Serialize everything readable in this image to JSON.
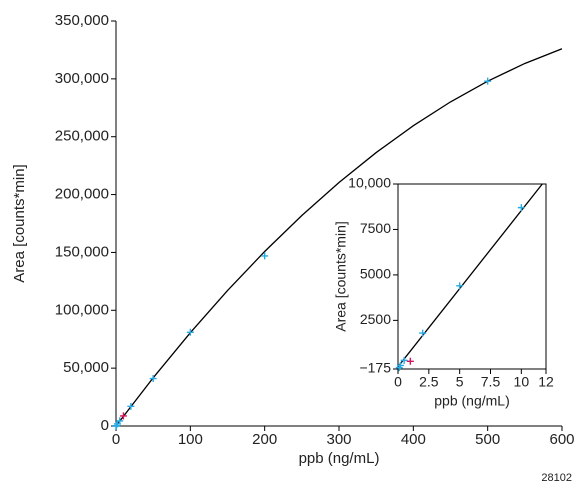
{
  "chart_data": [
    {
      "type": "scatter",
      "xlabel": "ppb (ng/mL)",
      "ylabel": "Area [counts*min]",
      "xlim": [
        0,
        600
      ],
      "ylim": [
        0,
        350000
      ],
      "frame": false,
      "xticks": [
        0,
        100,
        200,
        300,
        400,
        500,
        600
      ],
      "yticks": [
        0,
        {
          "value": 50000,
          "label": "50,000"
        },
        {
          "value": 100000,
          "label": "100,000"
        },
        {
          "value": 150000,
          "label": "150,000"
        },
        {
          "value": 200000,
          "label": "200,000"
        },
        {
          "value": 250000,
          "label": "250,000"
        },
        {
          "value": 300000,
          "label": "300,000"
        },
        {
          "value": 350000,
          "label": "350,000"
        }
      ],
      "series": [
        {
          "type": "line",
          "color": "#000000",
          "x": [
            0,
            50,
            100,
            150,
            200,
            250,
            300,
            350,
            400,
            450,
            500,
            550,
            600
          ],
          "values": [
            0,
            41650,
            80670,
            117040,
            150800,
            181900,
            210400,
            236300,
            259500,
            280100,
            298000,
            313300,
            326000
          ]
        },
        {
          "type": "scatter",
          "color": "#29abe2",
          "x": [
            0.1,
            0.2,
            0.5,
            2,
            5,
            20,
            50,
            100,
            200,
            500
          ],
          "values": [
            -100,
            20,
            300,
            1800,
            4400,
            17000,
            41000,
            81000,
            147000,
            298000
          ]
        },
        {
          "type": "scatter",
          "color": "#d4145a",
          "x": [
            10
          ],
          "values": [
            8700
          ]
        }
      ]
    },
    {
      "type": "scatter",
      "xlabel": "ppb (ng/mL)",
      "ylabel": "Area [counts*min]",
      "xlim": [
        0,
        12
      ],
      "ylim": [
        -175,
        10000
      ],
      "frame": true,
      "xticks": [
        0,
        2.5,
        5,
        7.5,
        10,
        12
      ],
      "yticks": [
        {
          "value": -175,
          "label": "−175"
        },
        2500,
        5000,
        7500,
        {
          "value": 10000,
          "label": "10,000"
        }
      ],
      "series": [
        {
          "type": "line",
          "color": "#000000",
          "x": [
            0,
            11.7
          ],
          "values": [
            -50,
            10000
          ]
        },
        {
          "type": "scatter",
          "color": "#29abe2",
          "x": [
            0.1,
            0.2,
            0.5,
            2,
            5,
            10
          ],
          "values": [
            -100,
            20,
            300,
            1800,
            4400,
            8700
          ]
        },
        {
          "type": "scatter",
          "color": "#d4145a",
          "x": [
            1
          ],
          "values": [
            250
          ]
        }
      ]
    }
  ],
  "footnote": "28102"
}
